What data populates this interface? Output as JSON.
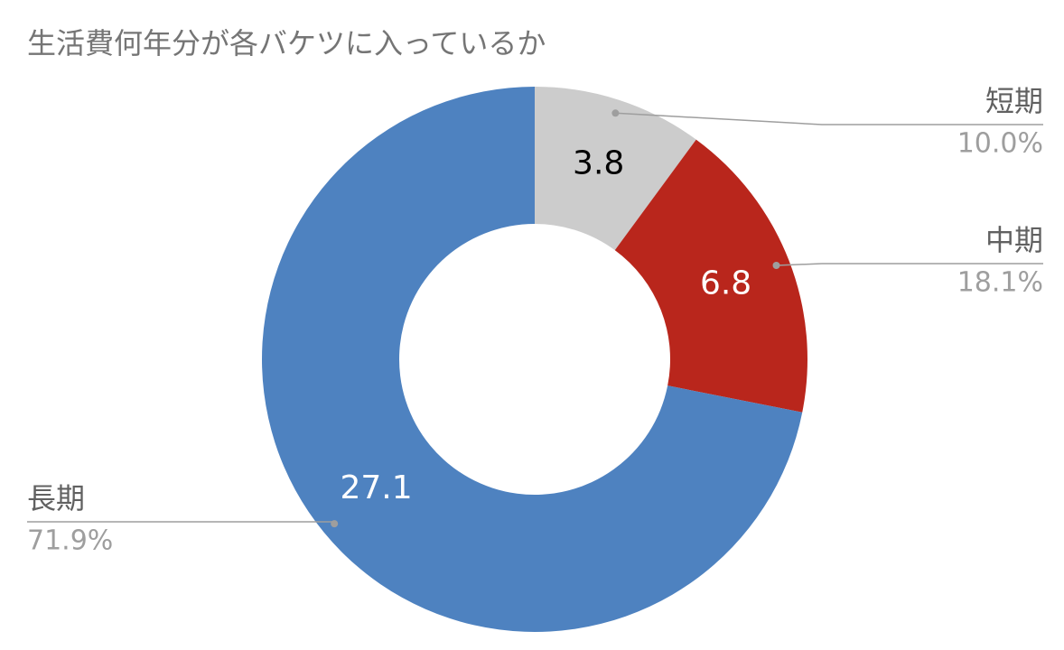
{
  "chart_data": {
    "type": "donut",
    "title": "生活費何年分が各バケツに入っているか",
    "categories": [
      "短期",
      "中期",
      "長期"
    ],
    "values": [
      3.8,
      6.8,
      27.1
    ],
    "percent_labels": [
      "10.0%",
      "18.1%",
      "71.9%"
    ],
    "colors": [
      "#cccccc",
      "#b9261c",
      "#4e82c0"
    ]
  }
}
